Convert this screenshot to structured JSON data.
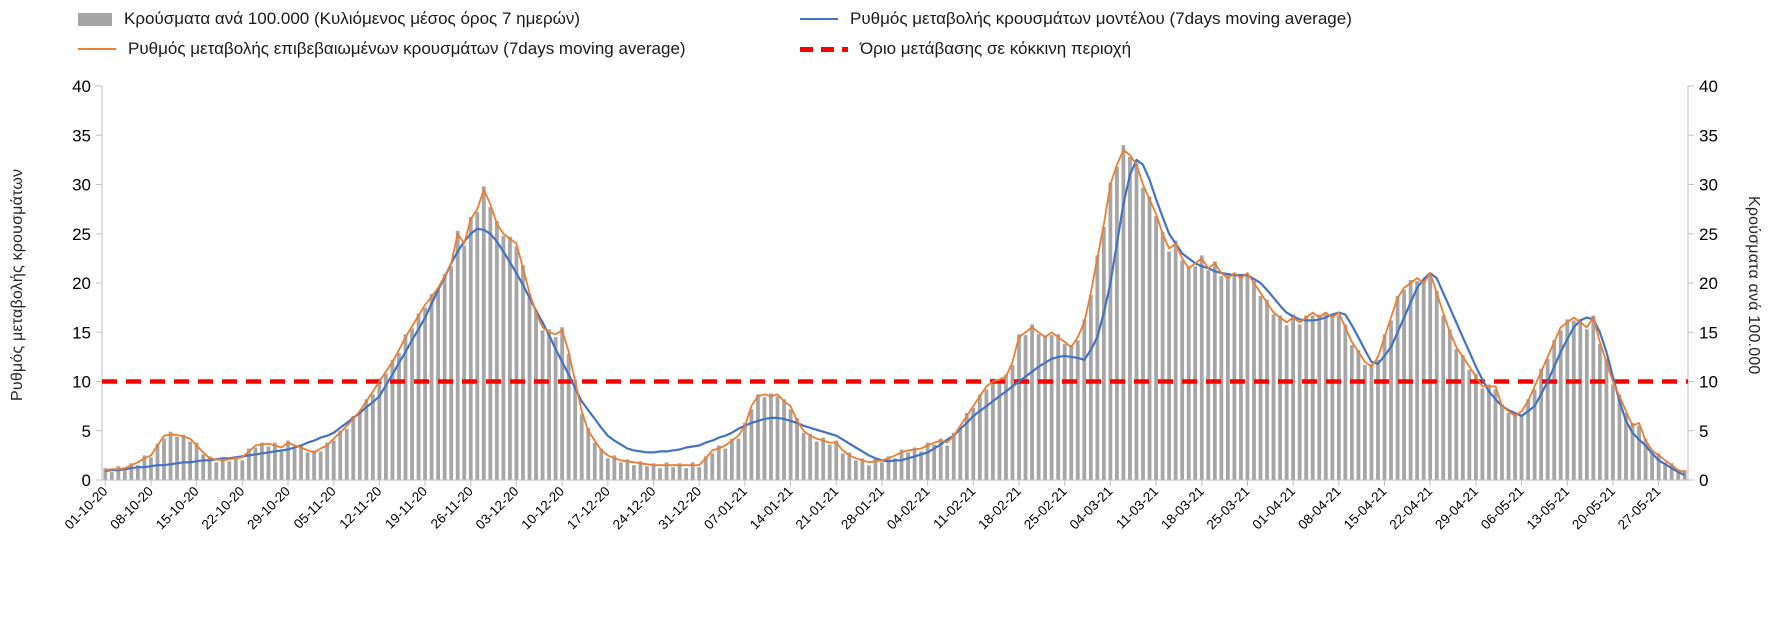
{
  "legend": {
    "items": [
      {
        "id": "bars",
        "label": "Κρούσματα ανά 100.000 (Κυλιόμενος μέσος όρος 7 ημερών)"
      },
      {
        "id": "model",
        "label": "Ρυθμός μεταβολής κρουσμάτων μοντέλου (7days moving average)"
      },
      {
        "id": "confirmed",
        "label": "Ρυθμός μεταβολής επιβεβαιωμένων κρουσμάτων (7days moving average)"
      },
      {
        "id": "threshold",
        "label": "Όριο μετάβασης σε κόκκινη περιοχή"
      }
    ]
  },
  "axes": {
    "left_title": "Ρυθμός μεταβολής κρουσμάτων",
    "right_title": "Κρούσματα ανά 100.000",
    "y_ticks": [
      0,
      5,
      10,
      15,
      20,
      25,
      30,
      35,
      40
    ]
  },
  "chart_data": {
    "type": "combo",
    "title": "",
    "xlabel": "",
    "ylabel_left": "Ρυθμός μεταβολής κρουσμάτων",
    "ylabel_right": "Κρούσματα ανά 100.000",
    "ylim": [
      0,
      40
    ],
    "grid": false,
    "legend_position": "top",
    "threshold_value": 10,
    "x_tick_interval_days": 7,
    "x_tick_labels": [
      "01-10-20",
      "08-10-20",
      "15-10-20",
      "22-10-20",
      "29-10-20",
      "05-11-20",
      "12-11-20",
      "19-11-20",
      "26-11-20",
      "03-12-20",
      "10-12-20",
      "17-12-20",
      "24-12-20",
      "31-12-20",
      "07-01-21",
      "14-01-21",
      "21-01-21",
      "28-01-21",
      "04-02-21",
      "11-02-21",
      "18-02-21",
      "25-02-21",
      "04-03-21",
      "11-03-21",
      "18-03-21",
      "25-03-21",
      "01-04-21",
      "08-04-21",
      "15-04-21",
      "22-04-21",
      "29-04-21",
      "06-05-21",
      "13-05-21",
      "20-05-21",
      "27-05-21"
    ],
    "colors": {
      "bars": "#a6a6a6",
      "model": "#4472C4",
      "confirmed": "#ED7D31",
      "threshold": "#ff0000"
    },
    "series": [
      {
        "name": "Κρούσματα ανά 100.000 (Κυλιόμενος μέσος όρος 7 ημερών)",
        "type": "bar",
        "axis": "right",
        "values": [
          1.2,
          0.8,
          1.4,
          1.0,
          1.7,
          1.5,
          2.5,
          2.3,
          3.7,
          4.2,
          4.9,
          4.4,
          4.6,
          3.9,
          3.8,
          2.6,
          2.4,
          1.8,
          2.3,
          1.9,
          2.4,
          2.0,
          3.2,
          3.3,
          3.8,
          3.4,
          3.8,
          3.1,
          4.0,
          3.2,
          3.6,
          2.8,
          3.0,
          2.9,
          3.8,
          4.0,
          5.0,
          5.2,
          6.5,
          6.8,
          8.2,
          8.7,
          10.3,
          10.8,
          12.2,
          12.9,
          14.8,
          15.4,
          16.9,
          17.5,
          18.9,
          19.3,
          20.9,
          21.7,
          25.3,
          23.8,
          26.7,
          27.2,
          29.8,
          27.7,
          26.3,
          24.8,
          24.7,
          23.7,
          21.8,
          18.8,
          17.2,
          15.2,
          15.3,
          14.5,
          15.5,
          12.8,
          10.2,
          6.7,
          5.3,
          3.8,
          3.2,
          2.2,
          2.5,
          1.8,
          2.1,
          1.5,
          1.9,
          1.4,
          1.7,
          1.2,
          1.8,
          1.3,
          1.7,
          1.2,
          1.8,
          1.3,
          2.4,
          2.7,
          3.5,
          3.2,
          4.2,
          4.2,
          5.8,
          7.2,
          8.7,
          8.4,
          8.8,
          8.5,
          8.2,
          7.2,
          6.3,
          4.8,
          4.7,
          3.9,
          4.3,
          3.6,
          4.0,
          2.7,
          2.8,
          2.0,
          2.2,
          1.5,
          2.2,
          1.8,
          2.4,
          2.2,
          3.1,
          2.8,
          3.3,
          2.9,
          3.8,
          3.6,
          4.2,
          3.5,
          4.8,
          5.2,
          6.8,
          7.3,
          8.7,
          9.2,
          10.3,
          10.0,
          10.7,
          11.7,
          14.8,
          14.7,
          15.8,
          14.8,
          14.7,
          14.7,
          14.8,
          13.8,
          13.7,
          14.2,
          16.3,
          18.8,
          22.8,
          25.7,
          30.2,
          31.8,
          34.0,
          32.8,
          32.2,
          29.7,
          28.8,
          26.8,
          25.2,
          23.2,
          24.3,
          22.3,
          21.7,
          21.7,
          22.8,
          21.3,
          22.2,
          20.7,
          20.8,
          20.7,
          20.8,
          20.8,
          20.2,
          18.7,
          18.3,
          16.8,
          16.7,
          15.7,
          16.8,
          15.8,
          16.7,
          16.7,
          16.8,
          16.8,
          16.7,
          16.7,
          15.8,
          13.7,
          13.2,
          11.7,
          11.8,
          12.2,
          14.8,
          16.2,
          18.7,
          19.3,
          20.3,
          20.2,
          20.2,
          20.8,
          19.2,
          16.7,
          15.3,
          13.3,
          12.7,
          11.2,
          10.8,
          9.3,
          9.7,
          9.2,
          7.7,
          6.8,
          6.8,
          6.7,
          8.2,
          9.2,
          11.3,
          12.3,
          14.2,
          15.2,
          16.3,
          16.2,
          16.3,
          15.3,
          16.7,
          13.8,
          12.3,
          9.7,
          8.7,
          6.8,
          5.8,
          5.5,
          4.2,
          2.8,
          2.7,
          1.8,
          1.7,
          0.8,
          1.0
        ]
      },
      {
        "name": "Ρυθμός μεταβολής επιβεβαιωμένων κρουσμάτων (7days moving average)",
        "type": "line",
        "axis": "left",
        "values": [
          1.0,
          1.1,
          1.1,
          1.2,
          1.5,
          1.8,
          2.2,
          2.5,
          3.5,
          4.5,
          4.6,
          4.6,
          4.4,
          4.2,
          3.5,
          2.8,
          2.2,
          2.1,
          2.0,
          2.1,
          2.2,
          2.3,
          2.9,
          3.5,
          3.6,
          3.7,
          3.5,
          3.3,
          3.8,
          3.5,
          3.3,
          3.0,
          2.8,
          3.2,
          3.5,
          4.2,
          4.8,
          5.5,
          6.2,
          7.0,
          8.0,
          9.0,
          10.0,
          11.0,
          12.0,
          13.2,
          14.5,
          15.6,
          16.7,
          17.8,
          18.6,
          19.5,
          20.7,
          22.0,
          25.0,
          24.0,
          26.5,
          27.5,
          29.5,
          28.0,
          26.0,
          25.0,
          24.5,
          24.0,
          21.5,
          19.0,
          17.0,
          15.5,
          15.0,
          14.8,
          15.2,
          13.0,
          10.0,
          7.0,
          5.0,
          4.0,
          3.0,
          2.5,
          2.2,
          2.0,
          1.9,
          1.8,
          1.7,
          1.6,
          1.5,
          1.5,
          1.5,
          1.5,
          1.5,
          1.5,
          1.5,
          1.5,
          2.2,
          3.0,
          3.2,
          3.5,
          4.0,
          4.5,
          5.5,
          7.5,
          8.5,
          8.7,
          8.5,
          8.7,
          8.0,
          7.5,
          6.0,
          5.0,
          4.5,
          4.2,
          4.0,
          3.8,
          3.8,
          3.0,
          2.5,
          2.2,
          2.0,
          1.8,
          1.9,
          2.0,
          2.2,
          2.5,
          2.8,
          3.0,
          3.1,
          3.2,
          3.5,
          3.8,
          4.0,
          3.8,
          4.5,
          5.5,
          6.5,
          7.5,
          8.5,
          9.5,
          10.0,
          10.2,
          10.5,
          12.0,
          14.5,
          15.0,
          15.5,
          15.0,
          14.5,
          15.0,
          14.5,
          14.0,
          13.5,
          14.5,
          16.0,
          19.0,
          22.5,
          26.0,
          30.0,
          32.0,
          33.5,
          33.0,
          32.0,
          30.0,
          28.5,
          27.0,
          25.0,
          23.5,
          24.0,
          22.5,
          21.5,
          22.0,
          22.5,
          21.5,
          22.0,
          21.0,
          20.5,
          21.0,
          20.5,
          21.0,
          20.0,
          19.0,
          18.0,
          17.0,
          16.5,
          16.0,
          16.5,
          16.0,
          16.5,
          17.0,
          16.5,
          17.0,
          16.5,
          17.0,
          15.5,
          14.0,
          13.0,
          12.0,
          11.5,
          12.5,
          14.5,
          16.5,
          18.5,
          19.5,
          20.0,
          20.5,
          20.0,
          21.0,
          19.0,
          17.0,
          15.0,
          13.5,
          12.5,
          11.5,
          10.5,
          9.5,
          9.5,
          9.5,
          7.5,
          7.0,
          6.5,
          7.0,
          8.0,
          9.5,
          11.0,
          12.5,
          14.0,
          15.5,
          16.0,
          16.5,
          16.0,
          15.5,
          16.5,
          14.0,
          12.0,
          10.0,
          8.5,
          7.0,
          5.5,
          5.8,
          4.0,
          3.0,
          2.5,
          2.0,
          1.5,
          1.0,
          0.8
        ]
      },
      {
        "name": "Ρυθμός μεταβολής κρουσμάτων μοντέλου (7days moving average)",
        "type": "line",
        "axis": "left",
        "values": [
          0.9,
          1.0,
          1.0,
          1.1,
          1.2,
          1.3,
          1.3,
          1.4,
          1.5,
          1.5,
          1.6,
          1.7,
          1.8,
          1.8,
          1.9,
          2.0,
          2.0,
          2.1,
          2.2,
          2.2,
          2.3,
          2.4,
          2.5,
          2.6,
          2.7,
          2.8,
          2.9,
          3.0,
          3.1,
          3.3,
          3.5,
          3.8,
          4.0,
          4.3,
          4.5,
          4.8,
          5.3,
          5.8,
          6.3,
          6.8,
          7.4,
          7.9,
          8.5,
          9.6,
          10.7,
          11.9,
          13.0,
          14.2,
          15.3,
          16.5,
          17.9,
          19.3,
          20.6,
          22.0,
          23.2,
          24.2,
          25.0,
          25.5,
          25.4,
          25.0,
          24.2,
          23.2,
          22.1,
          21.0,
          19.8,
          18.5,
          17.2,
          16.0,
          14.7,
          13.3,
          12.0,
          10.7,
          9.3,
          8.0,
          7.1,
          6.2,
          5.3,
          4.5,
          4.0,
          3.6,
          3.2,
          3.0,
          2.9,
          2.8,
          2.8,
          2.9,
          2.9,
          3.0,
          3.1,
          3.3,
          3.4,
          3.5,
          3.8,
          4.0,
          4.3,
          4.5,
          4.8,
          5.2,
          5.5,
          5.8,
          6.0,
          6.2,
          6.3,
          6.3,
          6.2,
          6.0,
          5.8,
          5.5,
          5.3,
          5.1,
          4.9,
          4.7,
          4.5,
          4.1,
          3.7,
          3.3,
          2.9,
          2.5,
          2.2,
          2.0,
          1.9,
          2.0,
          2.0,
          2.2,
          2.4,
          2.6,
          2.8,
          3.2,
          3.6,
          4.1,
          4.5,
          5.2,
          5.8,
          6.5,
          7.0,
          7.5,
          8.0,
          8.5,
          9.0,
          9.5,
          10.0,
          10.5,
          11.0,
          11.5,
          11.9,
          12.3,
          12.5,
          12.6,
          12.5,
          12.4,
          12.2,
          13.2,
          14.5,
          17.0,
          20.0,
          24.0,
          28.0,
          31.0,
          32.5,
          32.0,
          30.5,
          28.5,
          26.7,
          25.0,
          24.0,
          23.0,
          22.5,
          22.0,
          21.7,
          21.5,
          21.2,
          21.0,
          20.9,
          20.8,
          20.8,
          20.8,
          20.4,
          20.0,
          19.3,
          18.5,
          17.7,
          17.0,
          16.6,
          16.3,
          16.2,
          16.2,
          16.3,
          16.5,
          16.8,
          17.0,
          16.8,
          15.7,
          14.5,
          13.2,
          12.0,
          11.8,
          12.6,
          13.5,
          15.0,
          16.5,
          18.0,
          19.5,
          20.4,
          21.0,
          20.5,
          19.0,
          17.5,
          16.0,
          14.5,
          13.0,
          11.5,
          10.2,
          9.0,
          8.2,
          7.5,
          7.1,
          6.8,
          6.5,
          7.0,
          7.5,
          8.7,
          10.0,
          11.5,
          13.0,
          14.3,
          15.5,
          16.2,
          16.5,
          16.3,
          15.0,
          13.0,
          10.5,
          8.0,
          6.0,
          4.8,
          4.1,
          3.5,
          2.7,
          2.0,
          1.6,
          1.2,
          0.8,
          0.5
        ]
      }
    ]
  }
}
